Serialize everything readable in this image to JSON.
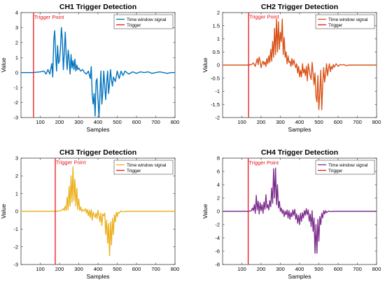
{
  "chart_data": [
    {
      "type": "line",
      "title": "CH1 Trigger Detection",
      "xlabel": "Samples",
      "ylabel": "Value",
      "xlim": [
        0,
        800
      ],
      "ylim": [
        -3,
        4
      ],
      "xticks": [
        100,
        200,
        300,
        400,
        500,
        600,
        700,
        800
      ],
      "yticks": [
        -3,
        -2,
        -1,
        0,
        1,
        2,
        3,
        4
      ],
      "legend_position": "top-right",
      "series": [
        {
          "name": "Time window signal",
          "color": "#0072BD",
          "x": [
            0,
            60,
            100,
            120,
            130,
            140,
            150,
            160,
            165,
            170,
            175,
            180,
            185,
            190,
            195,
            200,
            205,
            210,
            215,
            220,
            225,
            230,
            235,
            240,
            245,
            250,
            255,
            260,
            265,
            270,
            275,
            280,
            285,
            290,
            295,
            300,
            310,
            320,
            330,
            340,
            350,
            360,
            365,
            370,
            375,
            380,
            385,
            390,
            395,
            400,
            405,
            410,
            415,
            420,
            425,
            430,
            435,
            440,
            445,
            450,
            455,
            460,
            465,
            470,
            475,
            480,
            490,
            500,
            510,
            520,
            530,
            540,
            560,
            580,
            600,
            620,
            640,
            660,
            680,
            700,
            720,
            740,
            760,
            780,
            800
          ],
          "y": [
            0,
            0,
            0.05,
            0.1,
            -0.1,
            0.2,
            -0.1,
            0.6,
            -0.3,
            2.1,
            2.8,
            1.2,
            0.1,
            1.8,
            0.6,
            0.8,
            1.6,
            3.0,
            2.2,
            0.2,
            1.3,
            2.7,
            1.1,
            0.2,
            1.5,
            0.9,
            -0.1,
            1.2,
            0.3,
            0.8,
            0.2,
            0.9,
            0.1,
            0.5,
            0.2,
            0.3,
            0.1,
            0.2,
            0.0,
            -0.1,
            0.1,
            -0.4,
            0.4,
            -1.5,
            -2.1,
            -1.4,
            -2.9,
            -0.6,
            -0.4,
            -1.8,
            -3.0,
            -1.5,
            0.1,
            -2.1,
            -1.3,
            0.1,
            -0.9,
            -1.8,
            -0.7,
            0.1,
            -1.4,
            -0.7,
            0.2,
            -0.5,
            -0.9,
            -0.3,
            -0.6,
            0.1,
            -0.4,
            0.1,
            -0.2,
            0.1,
            -0.1,
            0.05,
            -0.05,
            0.05,
            0,
            0.05,
            -0.05,
            0,
            0.05,
            0,
            -0.05,
            0,
            0
          ]
        },
        {
          "name": "Trigger",
          "color": "#e8141b",
          "x": [
            65,
            65
          ],
          "y": [
            -3,
            4
          ]
        }
      ],
      "annotations": [
        {
          "text": "Trigger Point",
          "x": 68,
          "y": 3.85
        }
      ]
    },
    {
      "type": "line",
      "title": "CH2 Trigger Detection",
      "xlabel": "Samples",
      "ylabel": "Value",
      "xlim": [
        0,
        800
      ],
      "ylim": [
        -2,
        2
      ],
      "xticks": [
        100,
        200,
        300,
        400,
        500,
        600,
        700,
        800
      ],
      "yticks": [
        -2,
        -1.5,
        -1,
        -0.5,
        0,
        0.5,
        1,
        1.5,
        2
      ],
      "legend_position": "top-right",
      "series": [
        {
          "name": "Time window signal",
          "color": "#D95319",
          "x": [
            0,
            100,
            135,
            150,
            160,
            170,
            175,
            180,
            185,
            190,
            195,
            200,
            205,
            210,
            215,
            220,
            225,
            230,
            235,
            240,
            245,
            250,
            255,
            260,
            265,
            270,
            275,
            280,
            285,
            290,
            295,
            300,
            305,
            310,
            315,
            320,
            325,
            330,
            335,
            340,
            345,
            350,
            355,
            360,
            365,
            370,
            375,
            380,
            385,
            390,
            395,
            400,
            405,
            410,
            415,
            420,
            425,
            430,
            435,
            440,
            445,
            450,
            455,
            460,
            465,
            470,
            475,
            480,
            485,
            490,
            495,
            500,
            505,
            510,
            515,
            520,
            525,
            530,
            535,
            540,
            545,
            550,
            555,
            560,
            565,
            570,
            575,
            580,
            590,
            600,
            610,
            620,
            630,
            640,
            660,
            680,
            700,
            750,
            800
          ],
          "y": [
            0,
            0,
            0,
            0.02,
            0.08,
            -0.05,
            0.1,
            0.25,
            0.02,
            0.3,
            0.15,
            -0.1,
            0.05,
            0.15,
            0.02,
            0.12,
            -0.05,
            0.25,
            0.05,
            0.35,
            0.1,
            0.6,
            0.15,
            0.9,
            0.3,
            1.4,
            0.4,
            1.75,
            0.5,
            1.65,
            0.6,
            1.25,
            0.9,
            1.75,
            0.4,
            1.05,
            0.3,
            0.5,
            0.05,
            0.35,
            0.1,
            0.15,
            -0.05,
            0.25,
            0.0,
            0.2,
            0.05,
            -0.1,
            0.05,
            -0.3,
            -0.05,
            -0.45,
            -0.2,
            -0.45,
            0.05,
            -0.3,
            -0.15,
            -0.4,
            -0.05,
            -0.6,
            0.05,
            -0.2,
            -0.4,
            -0.55,
            0.1,
            -0.3,
            -0.75,
            -0.3,
            -1.2,
            -1.4,
            -0.4,
            -1.7,
            -1.05,
            -0.2,
            -1.7,
            -0.75,
            -0.1,
            -0.65,
            -0.35,
            0.05,
            -0.4,
            -0.15,
            0.05,
            -0.25,
            -0.05,
            -0.15,
            0.02,
            -0.08,
            0.05,
            -0.05,
            0.02,
            0,
            0.02,
            -0.02,
            0,
            0,
            0,
            0,
            0
          ]
        },
        {
          "name": "Trigger",
          "color": "#e8141b",
          "x": [
            135,
            135
          ],
          "y": [
            -2,
            2
          ]
        }
      ],
      "annotations": [
        {
          "text": "Trigger Point",
          "x": 138,
          "y": 1.93
        }
      ]
    },
    {
      "type": "line",
      "title": "CH3 Trigger Detection",
      "xlabel": "Samples",
      "ylabel": "Value",
      "xlim": [
        0,
        800
      ],
      "ylim": [
        -3,
        3
      ],
      "xticks": [
        100,
        200,
        300,
        400,
        500,
        600,
        700,
        800
      ],
      "yticks": [
        -3,
        -2,
        -1,
        0,
        1,
        2,
        3
      ],
      "legend_position": "top-right",
      "series": [
        {
          "name": "Time window signal",
          "color": "#EDB120",
          "x": [
            0,
            100,
            175,
            200,
            210,
            220,
            225,
            230,
            235,
            240,
            245,
            250,
            255,
            260,
            265,
            270,
            275,
            280,
            285,
            290,
            295,
            300,
            305,
            310,
            315,
            320,
            325,
            330,
            335,
            340,
            345,
            350,
            355,
            360,
            365,
            370,
            375,
            380,
            385,
            390,
            395,
            400,
            405,
            410,
            415,
            420,
            425,
            430,
            435,
            440,
            445,
            450,
            455,
            460,
            465,
            470,
            475,
            480,
            485,
            490,
            495,
            500,
            505,
            510,
            520,
            530,
            550,
            600,
            700,
            800
          ],
          "y": [
            0,
            0,
            0,
            0.02,
            0.05,
            0.15,
            0.05,
            0.3,
            0.05,
            0.8,
            0.1,
            1.4,
            0.3,
            2.0,
            0.5,
            2.5,
            0.6,
            1.8,
            0.3,
            1.3,
            0.1,
            0.7,
            0.05,
            0.25,
            0.0,
            0.1,
            0.02,
            0.05,
            0.15,
            -0.1,
            0.1,
            -0.25,
            0.05,
            -0.35,
            0.1,
            -0.5,
            -0.05,
            -0.2,
            -0.35,
            -0.1,
            -0.4,
            0.05,
            -0.2,
            -0.6,
            -0.1,
            -0.8,
            -0.15,
            -0.25,
            -0.1,
            -1.3,
            -0.5,
            -1.8,
            -0.7,
            -2.5,
            -0.6,
            -1.9,
            -0.4,
            -1.3,
            -0.2,
            -0.6,
            -0.05,
            -0.3,
            -0.05,
            -0.1,
            0.02,
            -0.02,
            0,
            0,
            0,
            0
          ]
        },
        {
          "name": "Trigger",
          "color": "#e8141b",
          "x": [
            178,
            178
          ],
          "y": [
            -3,
            3
          ]
        }
      ],
      "annotations": [
        {
          "text": "Trigger Point",
          "x": 181,
          "y": 2.9
        }
      ]
    },
    {
      "type": "line",
      "title": "CH4 Trigger Detection",
      "xlabel": "Samples",
      "ylabel": "Value",
      "xlim": [
        0,
        800
      ],
      "ylim": [
        -8,
        8
      ],
      "xticks": [
        100,
        200,
        300,
        400,
        500,
        600,
        700,
        800
      ],
      "yticks": [
        -8,
        -6,
        -4,
        -2,
        0,
        2,
        4,
        6,
        8
      ],
      "legend_position": "top-right",
      "series": [
        {
          "name": "Time window signal",
          "color": "#7E2F8E",
          "x": [
            0,
            100,
            135,
            150,
            155,
            160,
            165,
            170,
            175,
            180,
            185,
            190,
            195,
            200,
            205,
            210,
            215,
            220,
            225,
            230,
            235,
            240,
            245,
            250,
            255,
            260,
            265,
            270,
            275,
            280,
            285,
            290,
            295,
            300,
            305,
            310,
            315,
            320,
            325,
            330,
            335,
            340,
            345,
            350,
            355,
            360,
            365,
            370,
            375,
            380,
            385,
            390,
            395,
            400,
            405,
            410,
            415,
            420,
            425,
            430,
            435,
            440,
            445,
            450,
            455,
            460,
            465,
            470,
            475,
            480,
            485,
            490,
            495,
            500,
            505,
            510,
            515,
            520,
            525,
            530,
            535,
            540,
            550,
            560,
            580,
            600,
            700,
            800
          ],
          "y": [
            0,
            0,
            0,
            0.1,
            0.5,
            0.1,
            1.0,
            -0.3,
            2.4,
            0.2,
            1.5,
            -0.4,
            1.3,
            0.1,
            1.0,
            -0.3,
            1.4,
            0.3,
            2.5,
            0.5,
            1.0,
            0.2,
            1.6,
            0.7,
            3.5,
            1.2,
            6.4,
            2.0,
            6.5,
            1.0,
            4.0,
            0.5,
            1.5,
            0.0,
            0.5,
            -0.3,
            0.2,
            -0.8,
            0.0,
            -0.5,
            0.2,
            -1.0,
            0.1,
            -1.2,
            -0.2,
            -0.8,
            0.2,
            -0.6,
            0.3,
            -1.2,
            -0.4,
            -1.8,
            -0.6,
            -2.0,
            -0.3,
            -1.5,
            -0.2,
            -1.0,
            0.1,
            -0.6,
            0.4,
            -0.5,
            0.2,
            -1.5,
            -0.4,
            -2.3,
            0.1,
            -3.0,
            -1.0,
            -6.3,
            -2.0,
            -6.3,
            -1.2,
            -4.5,
            -0.8,
            -2.0,
            -0.3,
            -1.0,
            0.1,
            -0.4,
            0.1,
            -0.2,
            0.05,
            -0.05,
            0,
            0,
            0,
            0
          ]
        },
        {
          "name": "Trigger",
          "color": "#e8141b",
          "x": [
            133,
            133
          ],
          "y": [
            -8,
            8
          ]
        }
      ],
      "annotations": [
        {
          "text": "Trigger Point",
          "x": 136,
          "y": 7.7
        }
      ]
    }
  ]
}
